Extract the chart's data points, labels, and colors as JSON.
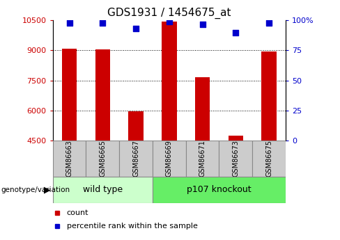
{
  "title": "GDS1931 / 1454675_at",
  "samples": [
    "GSM86663",
    "GSM86665",
    "GSM86667",
    "GSM86669",
    "GSM86671",
    "GSM86673",
    "GSM86675"
  ],
  "count_values": [
    9100,
    9050,
    5950,
    10450,
    7650,
    4750,
    8950
  ],
  "percentile_values": [
    98,
    98,
    93,
    99,
    97,
    90,
    98
  ],
  "y_min": 4500,
  "y_max": 10500,
  "y_ticks": [
    4500,
    6000,
    7500,
    9000,
    10500
  ],
  "right_y_ticks": [
    0,
    25,
    50,
    75,
    100
  ],
  "right_y_tick_labels": [
    "0",
    "25",
    "50",
    "75",
    "100%"
  ],
  "bar_color": "#cc0000",
  "dot_color": "#0000cc",
  "left_tick_color": "#cc0000",
  "right_tick_color": "#0000cc",
  "grid_color": "#000000",
  "bg_color": "#ffffff",
  "sample_box_color": "#cccccc",
  "wild_type_color": "#ccffcc",
  "knockout_color": "#66ee66",
  "wild_type_label": "wild type",
  "knockout_label": "p107 knockout",
  "wild_type_count": 3,
  "knockout_count": 4,
  "genotype_label": "genotype/variation",
  "legend_count": "count",
  "legend_percentile": "percentile rank within the sample",
  "bar_width": 0.45,
  "dot_size": 40
}
